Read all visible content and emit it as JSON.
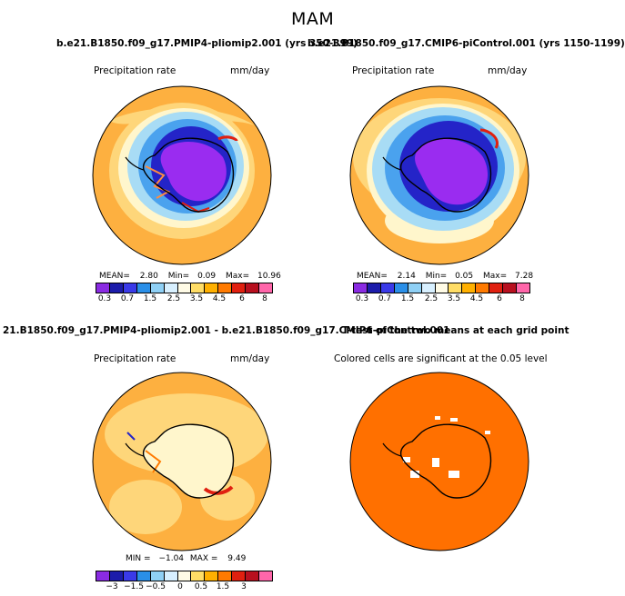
{
  "main_title": "MAM",
  "titles": {
    "left_case": "b.e21.B1850.f09_g17.PMIP4-pliomip2.001 (yrs 350-399)",
    "right_case": "b.e21.B1850.f09_g17.CMIP6-piControl.001 (yrs 1150-1199)",
    "diff": "21.B1850.f09_g17.PMIP4-pliomip2.001 - b.e21.B1850.f09_g17.CMIP6-piControl.001",
    "ttest": "T-test of the two means at each grid point"
  },
  "panels": {
    "top_left": {
      "label_left": "Precipitation rate",
      "label_right": "mm/day",
      "stats": {
        "mean_label": "MEAN=",
        "mean": "2.80",
        "min_label": "Min=",
        "min": "0.09",
        "max_label": "Max=",
        "max": "10.96"
      }
    },
    "top_right": {
      "label_left": "Precipitation rate",
      "label_right": "mm/day",
      "stats": {
        "mean_label": "MEAN=",
        "mean": "2.14",
        "min_label": "Min=",
        "min": "0.05",
        "max_label": "Max=",
        "max": "7.28"
      }
    },
    "bottom_left": {
      "label_left": "Precipitation rate",
      "label_right": "mm/day",
      "stats": {
        "min_label": "MIN =",
        "min": "−1.04",
        "max_label": "MAX =",
        "max": "9.49"
      }
    },
    "bottom_right": {
      "label": "Colored cells are significant at the 0.05 level"
    }
  },
  "colorbars": {
    "abs_labels": [
      "0.3",
      "0.7",
      "1.5",
      "2.5",
      "3.5",
      "4.5",
      "6",
      "8"
    ],
    "abs_colors": [
      "#8a2be2",
      "#1c1caa",
      "#3a3ae8",
      "#2a8fe8",
      "#8fd0f5",
      "#d8f0ff",
      "#fffbe6",
      "#ffdd66",
      "#ffb000",
      "#ff7a00",
      "#e02010",
      "#b8101f",
      "#ff66aa"
    ],
    "diff_labels": [
      "−3",
      "−1.5",
      "−0.5",
      "0",
      "0.5",
      "1.5",
      "3"
    ],
    "diff_colors": [
      "#8a2be2",
      "#1c1caa",
      "#3a3ae8",
      "#2a8fe8",
      "#8fd0f5",
      "#d8f0ff",
      "#fffbe6",
      "#ffdd66",
      "#ffb000",
      "#ff7a00",
      "#e02010",
      "#b8101f",
      "#ff66aa"
    ]
  },
  "colors": {
    "ocean_orange": "#fdb040",
    "light_orange": "#fed67a",
    "pale_blue": "#a8dcf5",
    "mid_blue": "#4aa2ee",
    "deep_blue": "#2424c8",
    "purple": "#9a2cf0",
    "ttest_orange": "#ff7000"
  }
}
